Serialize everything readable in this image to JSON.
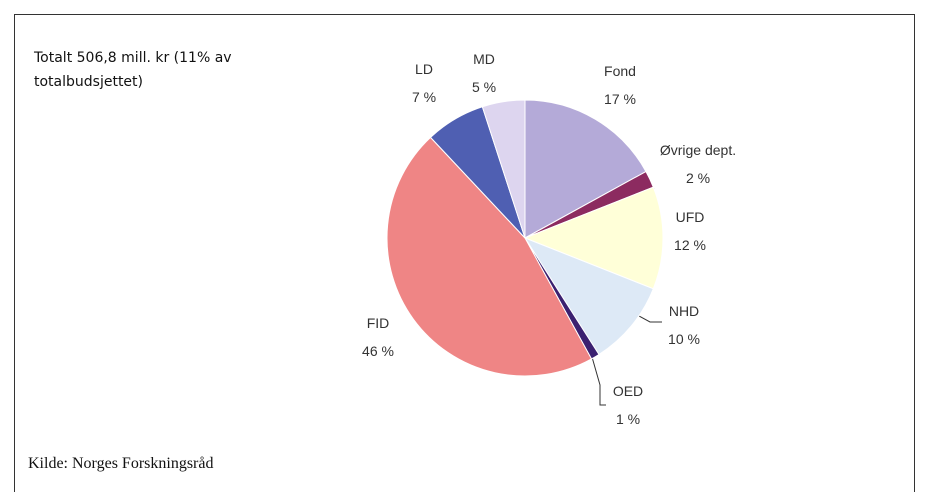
{
  "chart_data": {
    "type": "pie",
    "title": "Totalt 506,8 mill. kr (11% av totalbudsjettet)",
    "source": "Kilde: Norges Forskningsråd",
    "categories": [
      "Fond",
      "Øvrige dept.",
      "UFD",
      "NHD",
      "OED",
      "FID",
      "LD",
      "MD"
    ],
    "values": [
      17,
      2,
      12,
      10,
      1,
      46,
      7,
      5
    ],
    "value_labels": [
      "17 %",
      "2 %",
      "12 %",
      "10 %",
      "1 %",
      "46 %",
      "7 %",
      "5 %"
    ],
    "colors": [
      "#b4aad8",
      "#8c2b60",
      "#ffffd8",
      "#dde9f6",
      "#3b2070",
      "#ef8585",
      "#4f5fb2",
      "#ddd5ef"
    ]
  }
}
